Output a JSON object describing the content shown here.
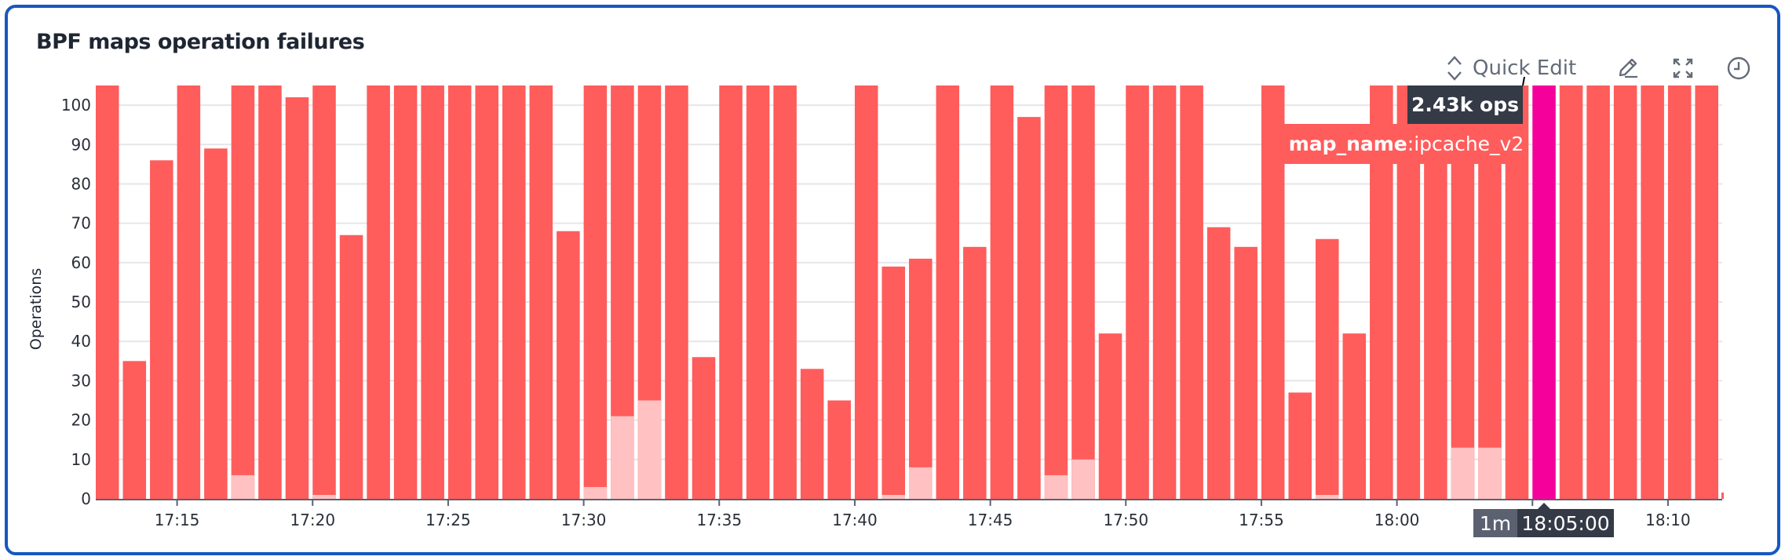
{
  "widget": {
    "title": "BPF maps operation failures",
    "quick_edit_label": "Quick Edit",
    "icons": [
      "chevron-up-down-icon",
      "pencil-icon",
      "expand-icon",
      "clock-icon"
    ]
  },
  "tooltip": {
    "value": "2.43k ops",
    "tag_key": "map_name",
    "tag_sep": ":",
    "tag_value": "ipcache_v2",
    "interval": "1m",
    "timestamp": "18:05:00"
  },
  "colors": {
    "border": "#1558c0",
    "series_main": "#ff5c5c",
    "series_light": "#ffc1c1",
    "highlight": "#f5009b",
    "tooltip_bg": "#343a46"
  },
  "chart_data": {
    "type": "bar",
    "stacked": true,
    "title": "BPF maps operation failures",
    "xlabel": "",
    "ylabel": "Operations",
    "ylim": [
      0,
      105
    ],
    "grid": true,
    "yticks": [
      "0",
      "10",
      "20",
      "30",
      "40",
      "50",
      "60",
      "70",
      "80",
      "90",
      "100"
    ],
    "xticks": [
      "17:15",
      "17:20",
      "17:25",
      "17:30",
      "17:35",
      "17:40",
      "17:45",
      "17:50",
      "17:55",
      "18:00",
      "18:05",
      "18:10"
    ],
    "categories": [
      "17:12",
      "17:13",
      "17:14",
      "17:15",
      "17:16",
      "17:17",
      "17:18",
      "17:19",
      "17:20",
      "17:21",
      "17:22",
      "17:23",
      "17:24",
      "17:25",
      "17:26",
      "17:27",
      "17:28",
      "17:29",
      "17:30",
      "17:31",
      "17:32",
      "17:33",
      "17:34",
      "17:35",
      "17:36",
      "17:37",
      "17:38",
      "17:39",
      "17:40",
      "17:41",
      "17:42",
      "17:43",
      "17:44",
      "17:45",
      "17:46",
      "17:47",
      "17:48",
      "17:49",
      "17:50",
      "17:51",
      "17:52",
      "17:53",
      "17:54",
      "17:55",
      "17:56",
      "17:57",
      "17:58",
      "17:59",
      "18:00",
      "18:01",
      "18:02",
      "18:03",
      "18:04",
      "18:05",
      "18:06",
      "18:07",
      "18:08",
      "18:09",
      "18:10",
      "18:11"
    ],
    "totals": [
      null,
      35,
      86,
      null,
      89,
      null,
      null,
      102,
      null,
      67,
      null,
      null,
      null,
      null,
      null,
      null,
      null,
      68,
      null,
      null,
      null,
      null,
      36,
      null,
      null,
      null,
      33,
      25,
      null,
      59,
      61,
      null,
      64,
      null,
      97,
      null,
      null,
      42,
      null,
      null,
      null,
      69,
      64,
      null,
      27,
      66,
      42,
      null,
      null,
      null,
      null,
      null,
      null,
      2430,
      null,
      null,
      null,
      null,
      null,
      null
    ],
    "light_part": [
      0,
      0,
      0,
      0,
      0,
      6,
      0,
      0,
      1,
      0,
      0,
      0,
      0,
      0,
      0,
      0,
      0,
      0,
      3,
      21,
      25,
      0,
      0,
      0,
      0,
      0,
      0,
      0,
      0,
      1,
      8,
      0,
      0,
      0,
      0,
      6,
      10,
      0,
      0,
      0,
      0,
      0,
      0,
      0,
      0,
      1,
      0,
      0,
      0,
      0,
      13,
      13,
      0,
      0,
      0,
      0,
      0,
      0,
      0,
      0
    ],
    "highlighted": "18:05",
    "note_values": "null = bar exceeds the visible y-range"
  }
}
